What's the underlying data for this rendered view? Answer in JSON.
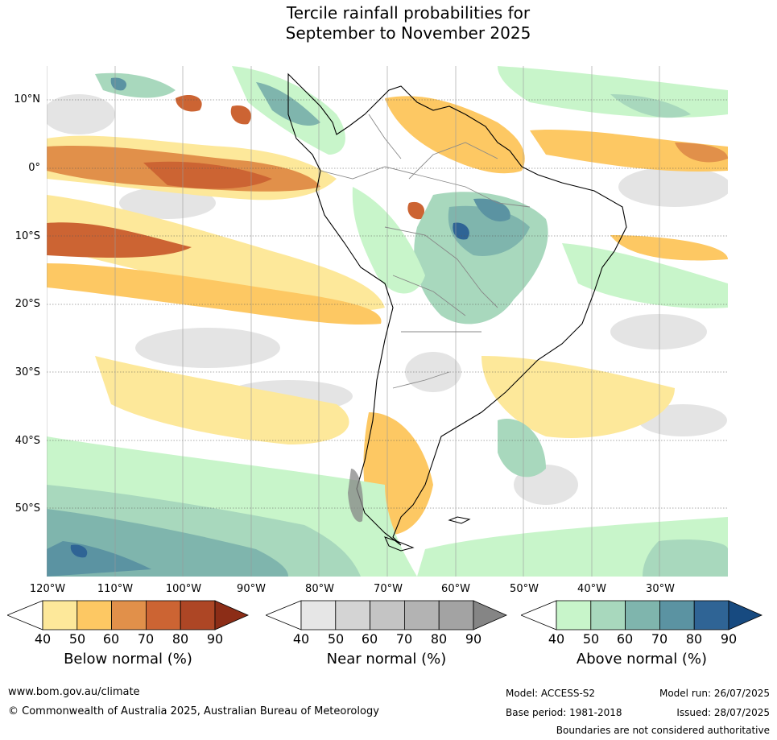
{
  "title": {
    "line1": "Tercile rainfall probabilities for",
    "line2": "September to November 2025"
  },
  "map": {
    "lat_labels": [
      "10°N",
      "0°",
      "10°S",
      "20°S",
      "30°S",
      "40°S",
      "50°S"
    ],
    "lon_labels": [
      "120°W",
      "110°W",
      "100°W",
      "90°W",
      "80°W",
      "70°W",
      "60°W",
      "50°W",
      "40°W",
      "30°W"
    ],
    "extent": {
      "lon_min": -125,
      "lon_max": -25,
      "lat_min": -60,
      "lat_max": 15
    }
  },
  "colorbars": [
    {
      "name": "below",
      "title": "Below normal (%)",
      "ticks": [
        "40",
        "50",
        "60",
        "70",
        "80",
        "90"
      ],
      "colors": [
        "#ffffff",
        "#fde89a",
        "#fdc863",
        "#e1904a",
        "#cc6433",
        "#ad4625",
        "#8c2d17"
      ]
    },
    {
      "name": "near",
      "title": "Near normal (%)",
      "ticks": [
        "40",
        "50",
        "60",
        "70",
        "80",
        "90"
      ],
      "colors": [
        "#ffffff",
        "#e6e6e6",
        "#d4d4d4",
        "#c4c4c4",
        "#b3b3b3",
        "#a3a3a3",
        "#858585"
      ]
    },
    {
      "name": "above",
      "title": "Above normal (%)",
      "ticks": [
        "40",
        "50",
        "60",
        "70",
        "80",
        "90"
      ],
      "colors": [
        "#ffffff",
        "#c8f5ca",
        "#a8d8bd",
        "#7fb5ad",
        "#5b93a2",
        "#2f6495",
        "#174a80"
      ]
    }
  ],
  "footer": {
    "website": "www.bom.gov.au/climate",
    "copyright": "© Commonwealth of Australia 2025, Australian Bureau of Meteorology",
    "model": "Model: ACCESS-S2",
    "base_period": "Base period: 1981-2018",
    "model_run": "Model run: 26/07/2025",
    "issued": "Issued: 28/07/2025",
    "disclaimer": "Boundaries are not considered authoritative"
  }
}
